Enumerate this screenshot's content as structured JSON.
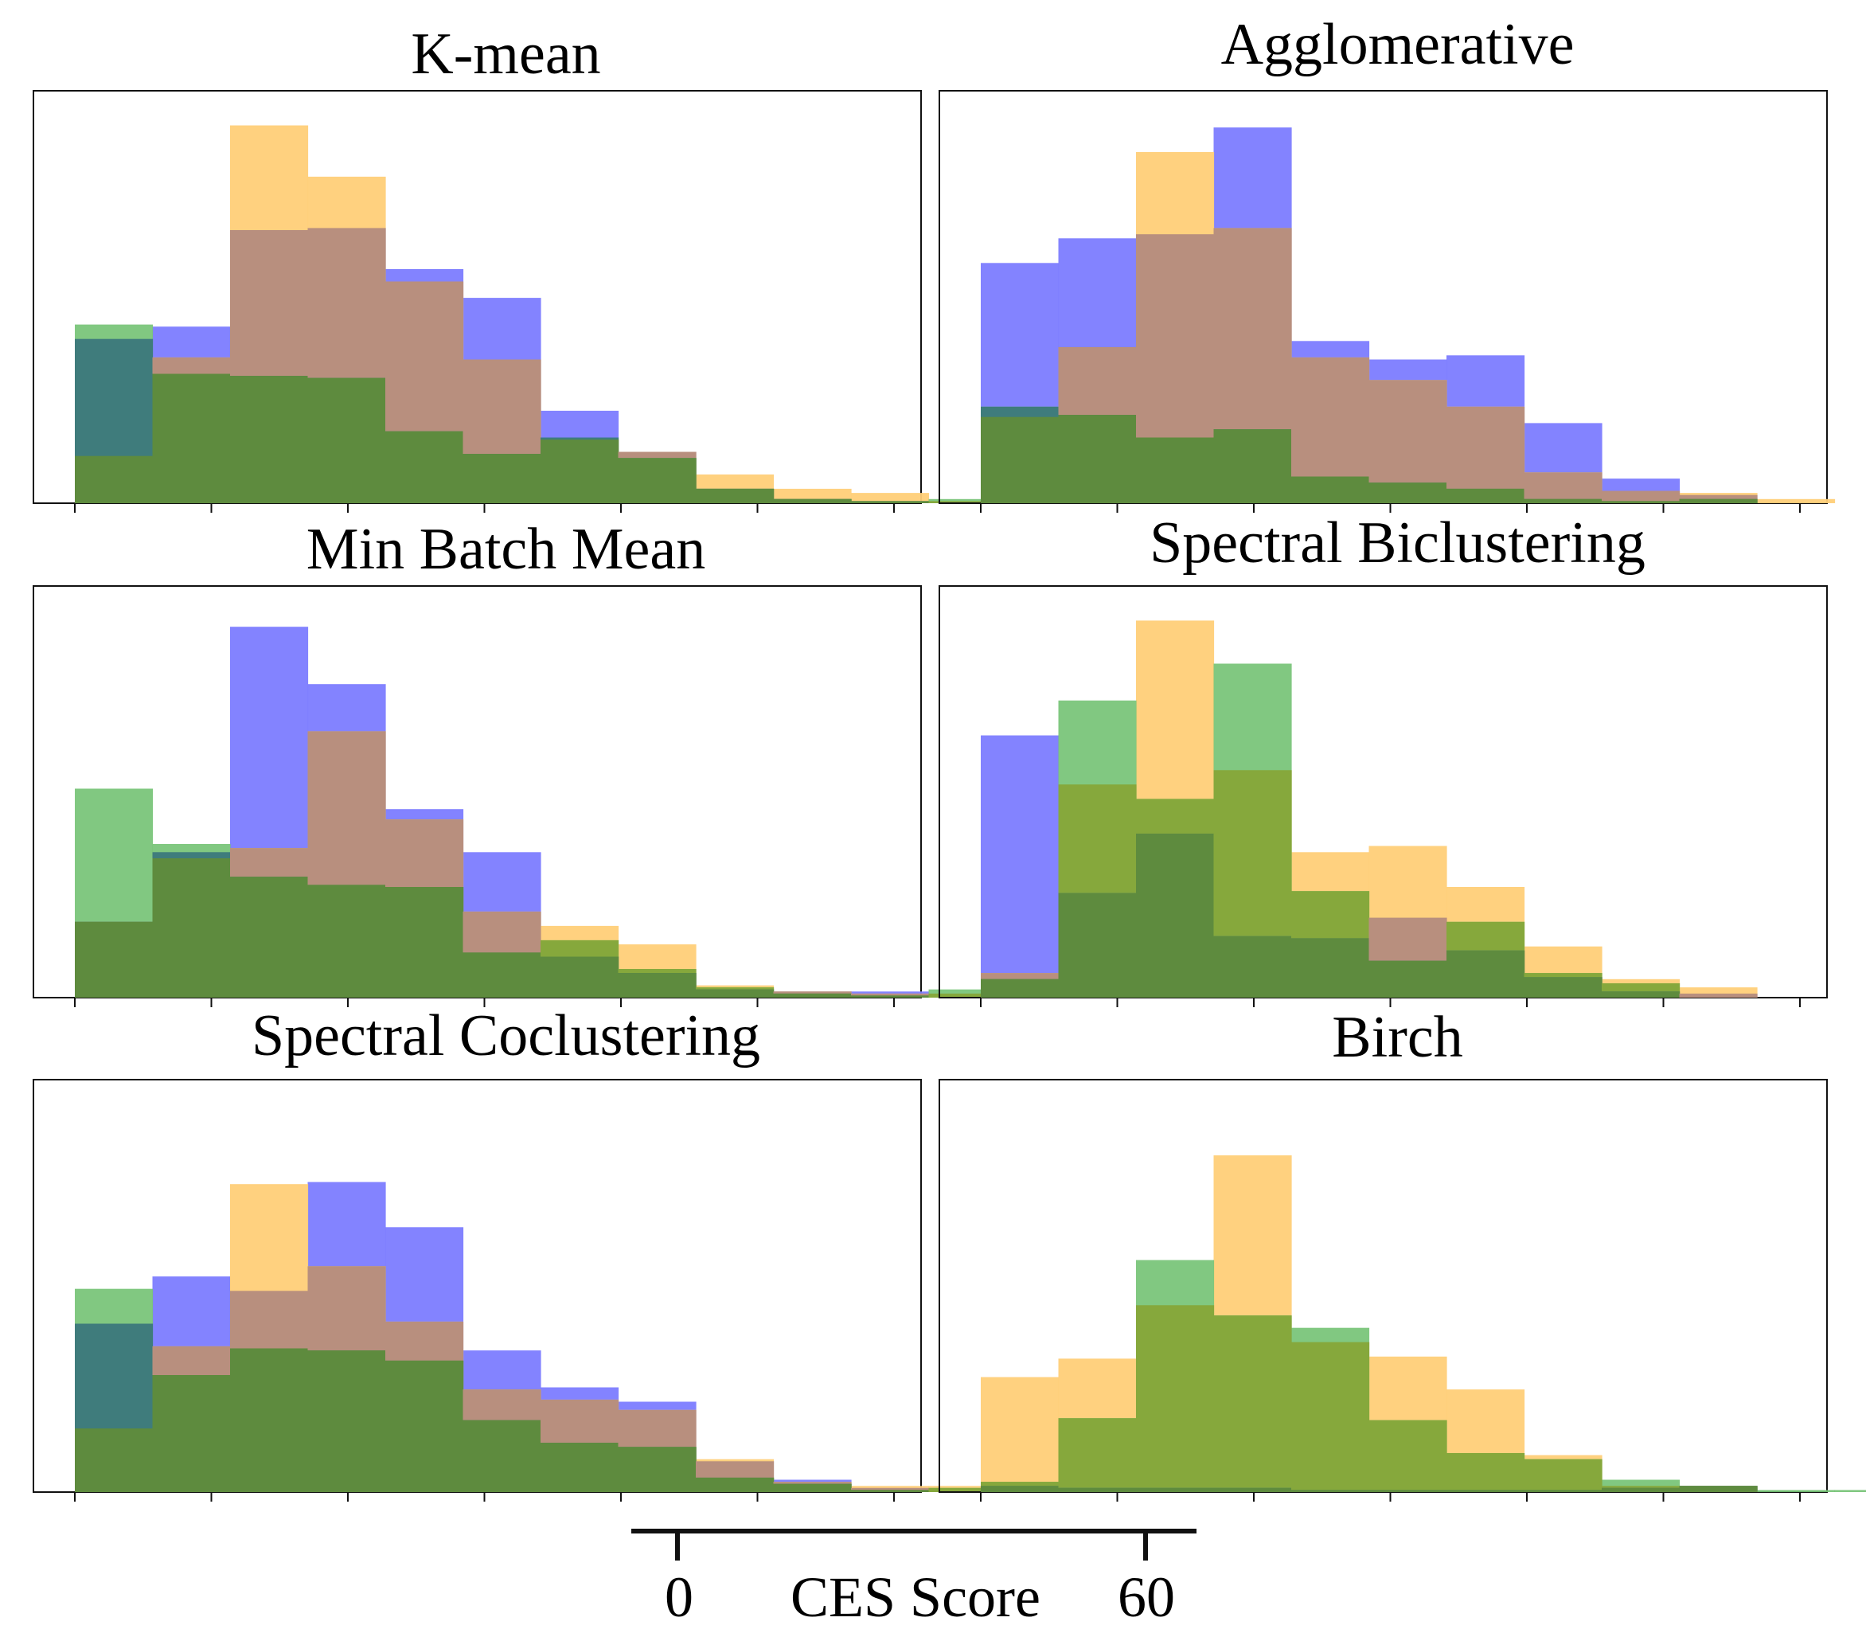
{
  "chart_data": [
    {
      "type": "histogram",
      "title": "K-mean",
      "series": [
        {
          "name": "blue",
          "values": [
            8.0,
            8.6,
            13.3,
            13.4,
            11.4,
            10.0,
            4.5,
            2.5,
            0.7,
            0.2,
            0.1
          ]
        },
        {
          "name": "orange",
          "values": [
            2.3,
            7.1,
            18.4,
            15.9,
            10.8,
            7.0,
            3.1,
            2.5,
            1.4,
            0.7,
            0.5,
            0.1
          ]
        },
        {
          "name": "green",
          "values": [
            8.7,
            6.3,
            6.2,
            6.1,
            3.5,
            2.4,
            3.2,
            2.2,
            0.7,
            0.2,
            0.1,
            0.2,
            0.5
          ]
        }
      ]
    },
    {
      "type": "histogram",
      "title": "Agglomerative",
      "series": [
        {
          "name": "blue",
          "values": [
            11.7,
            12.9,
            13.1,
            18.3,
            7.9,
            7.0,
            7.2,
            3.9,
            1.2,
            0.4
          ]
        },
        {
          "name": "orange",
          "values": [
            4.2,
            7.6,
            17.1,
            13.4,
            7.1,
            6.0,
            4.7,
            1.5,
            0.6,
            0.5,
            0.2
          ]
        },
        {
          "name": "green",
          "values": [
            4.7,
            4.3,
            3.2,
            3.6,
            1.3,
            1.0,
            0.7,
            0.2,
            0.1,
            0.2
          ]
        }
      ]
    },
    {
      "type": "histogram",
      "title": "Min Batch Mean",
      "series": [
        {
          "name": "blue",
          "values": [
            3.7,
            7.1,
            18.1,
            15.3,
            9.2,
            7.1,
            2.0,
            1.2,
            0.4,
            0.3,
            0.3
          ]
        },
        {
          "name": "orange",
          "values": [
            3.7,
            6.8,
            7.3,
            13.0,
            8.7,
            4.2,
            3.5,
            2.6,
            0.6,
            0.3,
            0.2,
            0.2
          ]
        },
        {
          "name": "green",
          "values": [
            10.2,
            7.5,
            5.9,
            5.5,
            5.4,
            2.2,
            2.8,
            1.4,
            0.5,
            0.2,
            0.1,
            0.4,
            0.4
          ]
        }
      ]
    },
    {
      "type": "histogram",
      "title": "Spectral Biclustering",
      "series": [
        {
          "name": "blue",
          "values": [
            12.8,
            5.1,
            8.0,
            3.0,
            2.9,
            3.9,
            2.3,
            1.0,
            0.3,
            0.2
          ]
        },
        {
          "name": "orange",
          "values": [
            1.2,
            10.4,
            18.4,
            11.1,
            7.1,
            7.4,
            5.4,
            2.5,
            0.9,
            0.5
          ]
        },
        {
          "name": "green",
          "values": [
            0.9,
            14.5,
            9.7,
            16.3,
            5.2,
            1.8,
            3.7,
            1.2,
            0.7
          ]
        }
      ]
    },
    {
      "type": "histogram",
      "title": "Spectral Coclustering",
      "series": [
        {
          "name": "blue",
          "values": [
            8.2,
            10.5,
            9.8,
            15.1,
            12.9,
            6.9,
            5.1,
            4.4,
            1.5,
            0.6,
            0.2
          ]
        },
        {
          "name": "orange",
          "values": [
            3.1,
            7.1,
            15.0,
            11.0,
            8.3,
            5.0,
            4.5,
            4.0,
            1.6,
            0.5,
            0.3,
            0.3
          ]
        },
        {
          "name": "green",
          "values": [
            9.9,
            5.7,
            7.0,
            6.9,
            6.4,
            3.5,
            2.4,
            2.2,
            0.7,
            0.4,
            0.1,
            0.2,
            0.4
          ]
        }
      ]
    },
    {
      "type": "histogram",
      "title": "Birch",
      "series": [
        {
          "name": "blue",
          "values": [
            0.3,
            0.2,
            0.2,
            0.2,
            0.1,
            0.1,
            0.1,
            0.1,
            0.2,
            0.3
          ]
        },
        {
          "name": "orange",
          "values": [
            5.6,
            6.5,
            9.1,
            16.4,
            7.3,
            6.6,
            5.0,
            1.8,
            0.3,
            0.3
          ]
        },
        {
          "name": "green",
          "values": [
            0.5,
            3.6,
            11.3,
            8.6,
            8.0,
            3.5,
            1.9,
            1.6,
            0.6,
            0.3,
            0.1,
            0.1
          ]
        }
      ]
    }
  ],
  "legend_axis": {
    "label": "CES Score",
    "tick_min_label": "0",
    "tick_max_label": "60"
  },
  "colors": {
    "blue": "#7c7cff",
    "orange": "#ffcf78",
    "green": "#73c273",
    "axis": "#111111"
  }
}
